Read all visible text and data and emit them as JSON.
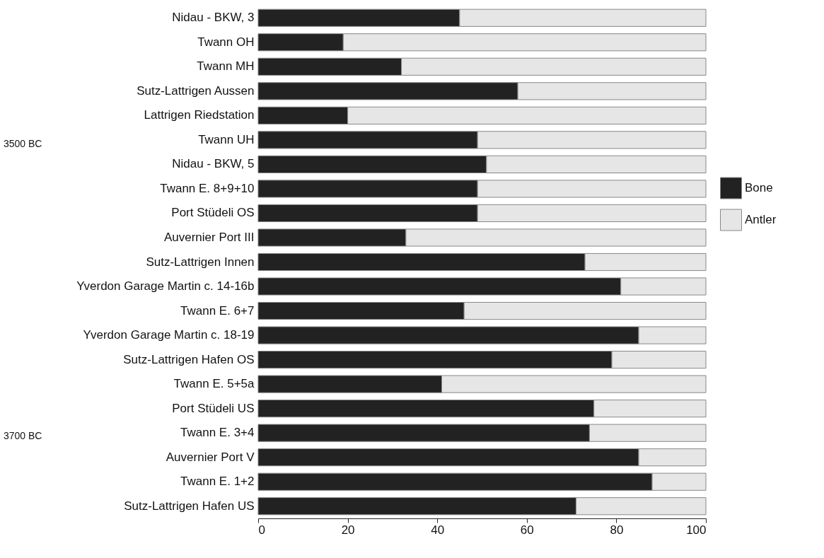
{
  "chart_data": {
    "type": "bar",
    "orientation": "horizontal",
    "stacked": true,
    "categories": [
      "Nidau - BKW, 3",
      "Twann OH",
      "Twann MH",
      "Sutz-Lattrigen Aussen",
      "Lattrigen Riedstation",
      "Twann UH",
      "Nidau - BKW, 5",
      "Twann E. 8+9+10",
      "Port Stüdeli OS",
      "Auvernier Port III",
      "Sutz-Lattrigen Innen",
      "Yverdon Garage Martin c. 14-16b",
      "Twann E. 6+7",
      "Yverdon Garage Martin c. 18-19",
      "Sutz-Lattrigen Hafen OS",
      "Twann E. 5+5a",
      "Port Stüdeli US",
      "Twann E. 3+4",
      "Auvernier Port V",
      "Twann E. 1+2",
      "Sutz-Lattrigen Hafen US"
    ],
    "series": [
      {
        "name": "Bone",
        "color": "#222222",
        "values": [
          45,
          19,
          32,
          58,
          20,
          49,
          51,
          49,
          49,
          33,
          73,
          81,
          46,
          85,
          79,
          41,
          75,
          74,
          85,
          88,
          71
        ]
      },
      {
        "name": "Antler",
        "color": "#e6e6e6",
        "values": [
          55,
          81,
          68,
          42,
          80,
          51,
          49,
          51,
          51,
          67,
          27,
          19,
          54,
          15,
          21,
          59,
          25,
          26,
          15,
          12,
          29
        ]
      }
    ],
    "xlim": [
      0,
      100
    ],
    "xticks": [
      0,
      20,
      40,
      60,
      80,
      100
    ],
    "annotations": [
      "3500 BC",
      "3700 BC"
    ],
    "legend": "right",
    "grid": false
  }
}
